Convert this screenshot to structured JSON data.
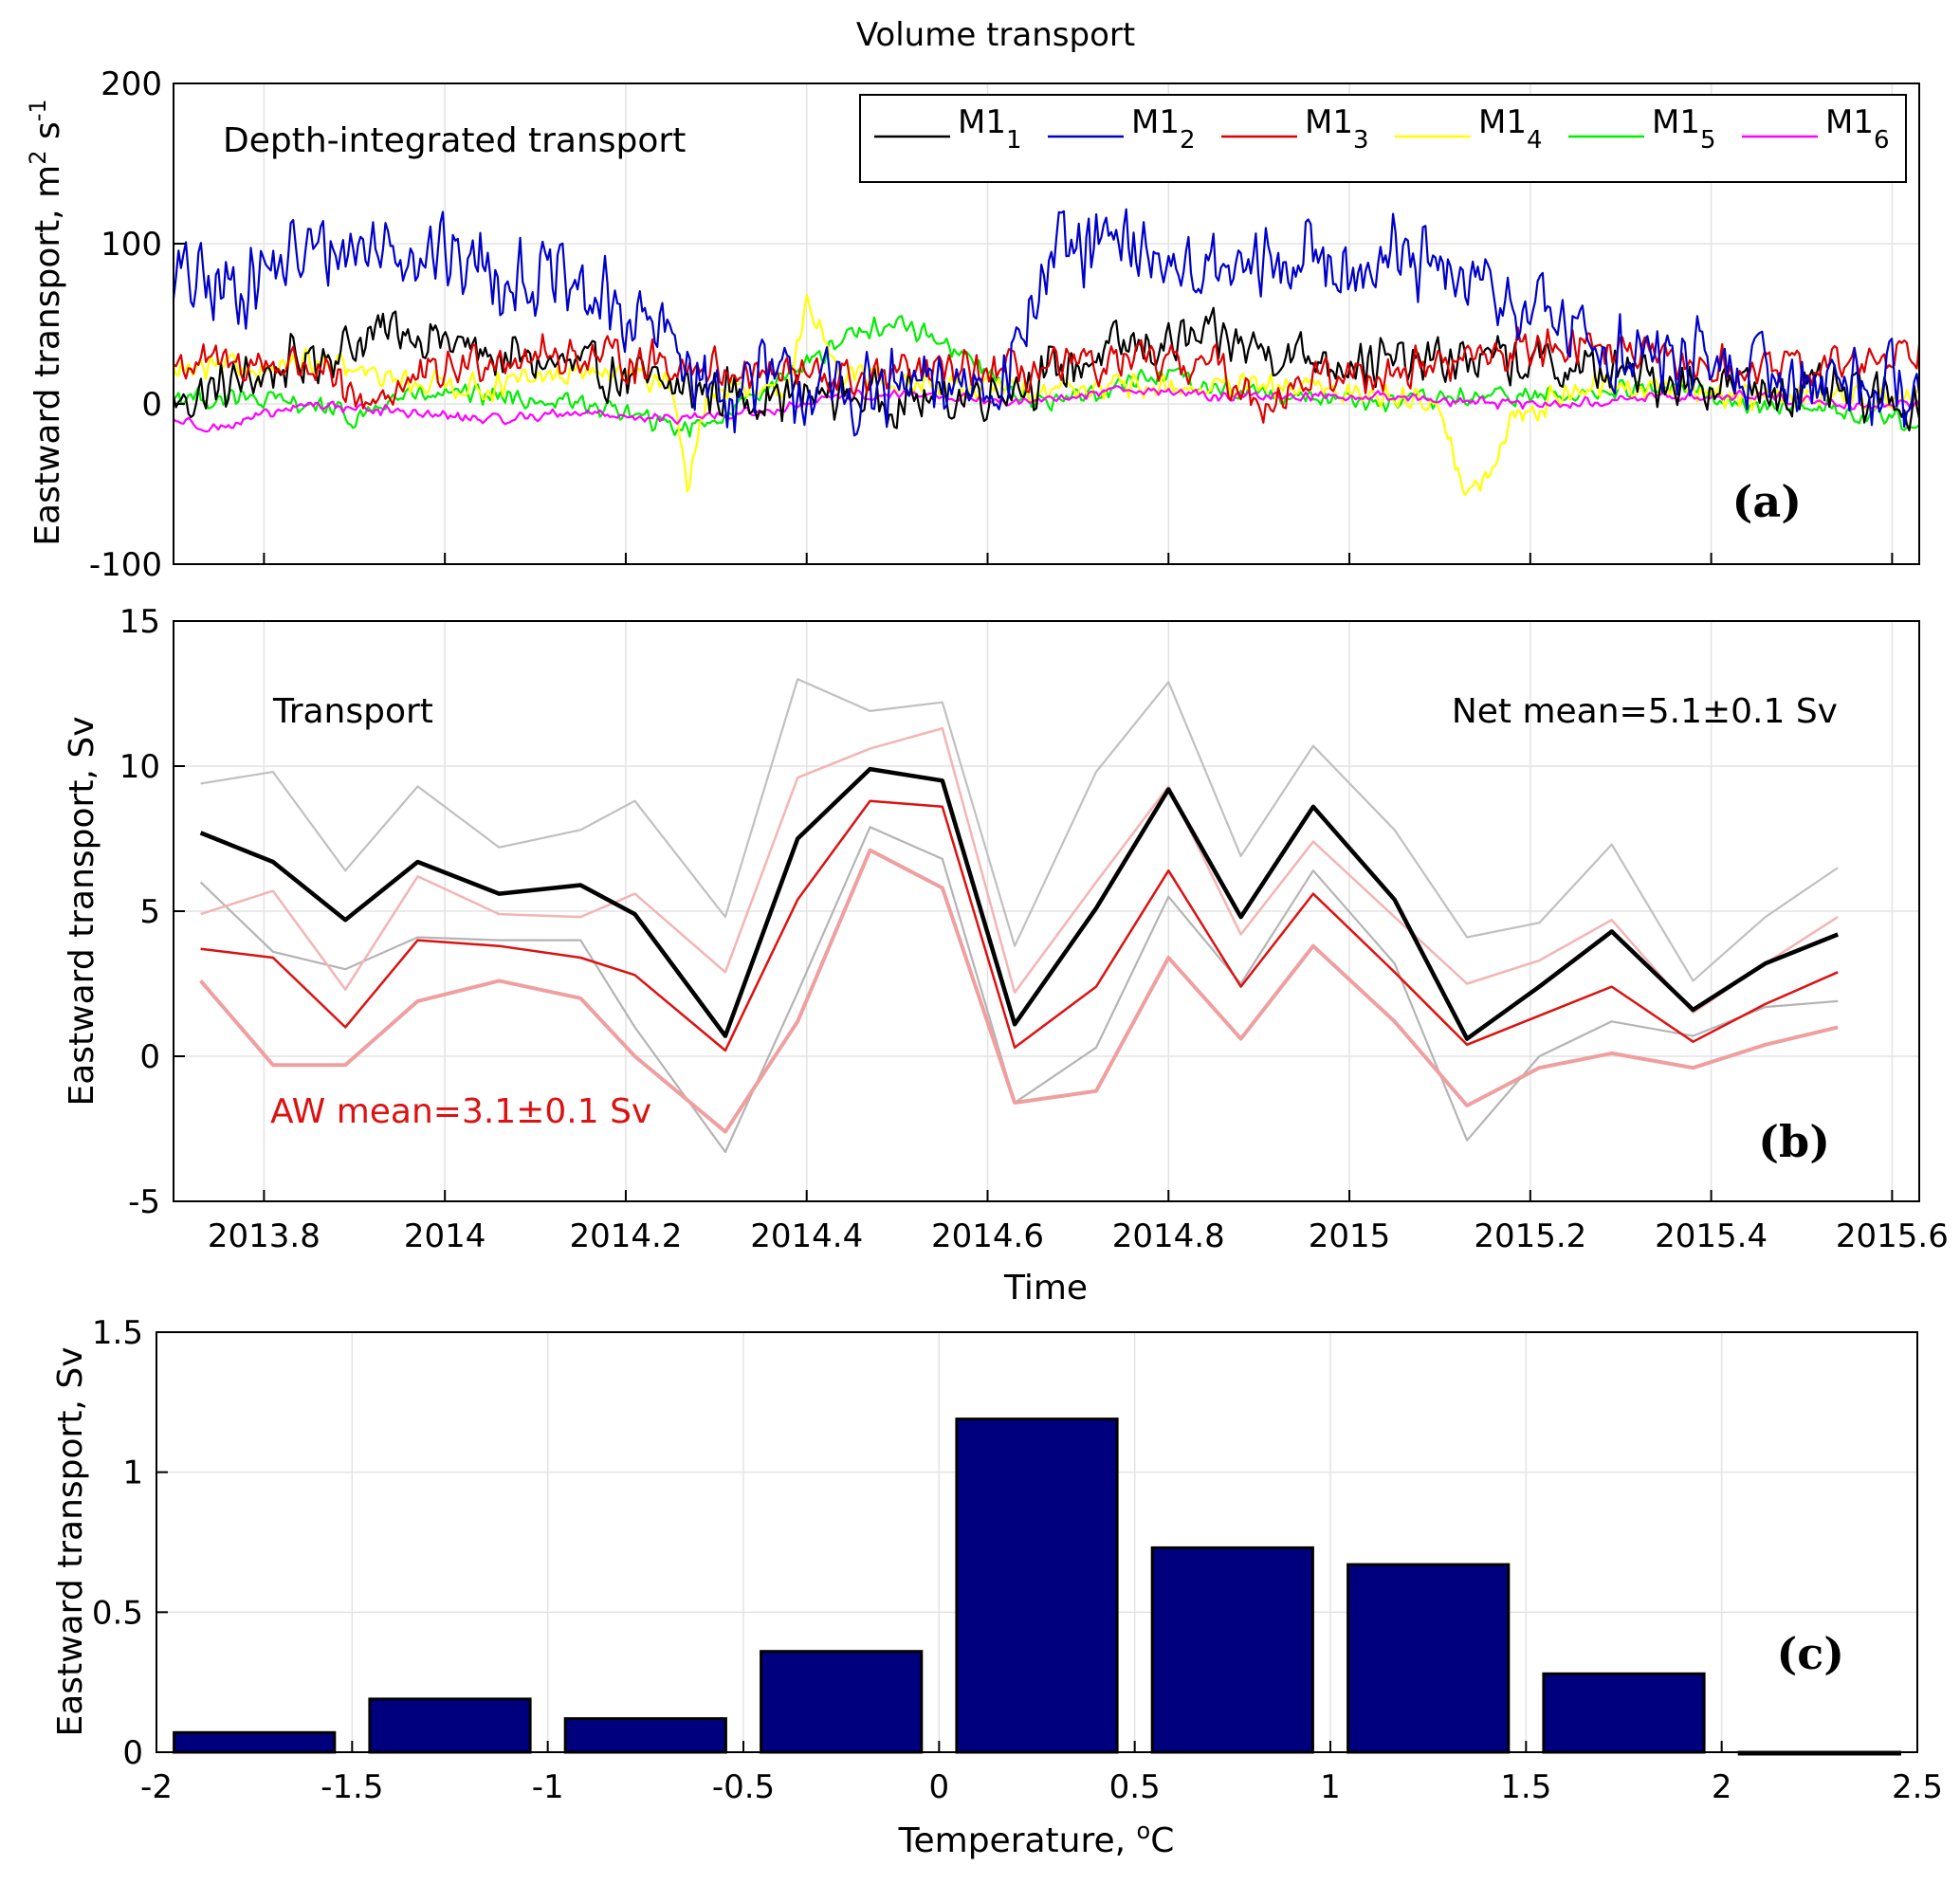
{
  "figure_title": "Volume transport",
  "chart_data": [
    {
      "id": "a",
      "type": "line",
      "panel_label": "(a)",
      "annotation": "Depth-integrated transport",
      "xlabel": "",
      "ylabel": "Eastward transport, m² s⁻¹",
      "ylabel_parts": {
        "base": "Eastward transport, m",
        "exp1": "2",
        "mid": " s",
        "exp2": "-1"
      },
      "xlim": [
        2013.7,
        2015.63
      ],
      "ylim": [
        -100,
        200
      ],
      "yticks": [
        -100,
        0,
        100,
        200
      ],
      "ytick_labels": [
        "-100",
        "0",
        "100",
        "200"
      ],
      "xticks": [
        2013.8,
        2014.0,
        2014.2,
        2014.4,
        2014.6,
        2014.8,
        2015.0,
        2015.2,
        2015.4,
        2015.6
      ],
      "grid": true,
      "legend_position": "top-right",
      "series": [
        {
          "name": "M1",
          "sub": "1",
          "color": "#000000",
          "base": 18,
          "segments": [
            [
              2013.7,
              0
            ],
            [
              2013.85,
              28
            ],
            [
              2013.95,
              48
            ],
            [
              2014.05,
              30
            ],
            [
              2014.15,
              22
            ],
            [
              2014.25,
              10
            ],
            [
              2014.35,
              5
            ],
            [
              2014.45,
              5
            ],
            [
              2014.55,
              2
            ],
            [
              2014.65,
              15
            ],
            [
              2014.75,
              35
            ],
            [
              2014.85,
              40
            ],
            [
              2014.95,
              30
            ],
            [
              2015.05,
              25
            ],
            [
              2015.15,
              28
            ],
            [
              2015.25,
              22
            ],
            [
              2015.35,
              15
            ],
            [
              2015.45,
              10
            ],
            [
              2015.55,
              5
            ],
            [
              2015.63,
              0
            ]
          ],
          "amp": 20
        },
        {
          "name": "M1",
          "sub": "2",
          "color": "#0000cc",
          "base": 0,
          "segments": [
            [
              2013.7,
              80
            ],
            [
              2013.75,
              70
            ],
            [
              2013.85,
              95
            ],
            [
              2013.95,
              100
            ],
            [
              2014.05,
              85
            ],
            [
              2014.15,
              70
            ],
            [
              2014.25,
              40
            ],
            [
              2014.3,
              5
            ],
            [
              2014.35,
              15
            ],
            [
              2014.45,
              5
            ],
            [
              2014.55,
              10
            ],
            [
              2014.62,
              20
            ],
            [
              2014.67,
              90
            ],
            [
              2014.75,
              100
            ],
            [
              2014.85,
              80
            ],
            [
              2014.95,
              90
            ],
            [
              2015.05,
              90
            ],
            [
              2015.15,
              70
            ],
            [
              2015.22,
              55
            ],
            [
              2015.3,
              30
            ],
            [
              2015.4,
              25
            ],
            [
              2015.5,
              15
            ],
            [
              2015.63,
              15
            ]
          ],
          "amp": 32
        },
        {
          "name": "M1",
          "sub": "3",
          "color": "#dd0000",
          "base": 0,
          "segments": [
            [
              2013.7,
              25
            ],
            [
              2013.85,
              25
            ],
            [
              2013.9,
              0
            ],
            [
              2013.95,
              10
            ],
            [
              2014.05,
              30
            ],
            [
              2014.15,
              30
            ],
            [
              2014.25,
              25
            ],
            [
              2014.35,
              20
            ],
            [
              2014.45,
              15
            ],
            [
              2014.55,
              20
            ],
            [
              2014.65,
              20
            ],
            [
              2014.75,
              25
            ],
            [
              2014.85,
              25
            ],
            [
              2014.9,
              0
            ],
            [
              2014.95,
              15
            ],
            [
              2015.05,
              20
            ],
            [
              2015.15,
              30
            ],
            [
              2015.25,
              40
            ],
            [
              2015.35,
              25
            ],
            [
              2015.45,
              20
            ],
            [
              2015.55,
              25
            ],
            [
              2015.63,
              35
            ]
          ],
          "amp": 16
        },
        {
          "name": "M1",
          "sub": "4",
          "color": "#ffff00",
          "base": 0,
          "segments": [
            [
              2013.7,
              20
            ],
            [
              2013.85,
              25
            ],
            [
              2013.95,
              15
            ],
            [
              2014.05,
              10
            ],
            [
              2014.15,
              20
            ],
            [
              2014.25,
              15
            ],
            [
              2014.27,
              -55
            ],
            [
              2014.29,
              10
            ],
            [
              2014.38,
              5
            ],
            [
              2014.4,
              65
            ],
            [
              2014.44,
              20
            ],
            [
              2014.55,
              10
            ],
            [
              2014.65,
              10
            ],
            [
              2014.75,
              10
            ],
            [
              2014.85,
              10
            ],
            [
              2014.95,
              10
            ],
            [
              2015.05,
              5
            ],
            [
              2015.1,
              0
            ],
            [
              2015.13,
              -60
            ],
            [
              2015.16,
              -40
            ],
            [
              2015.18,
              -10
            ],
            [
              2015.25,
              10
            ],
            [
              2015.35,
              10
            ],
            [
              2015.45,
              5
            ],
            [
              2015.55,
              5
            ],
            [
              2015.63,
              5
            ]
          ],
          "amp": 10
        },
        {
          "name": "M1",
          "sub": "5",
          "color": "#00ee00",
          "base": 0,
          "segments": [
            [
              2013.7,
              5
            ],
            [
              2013.85,
              0
            ],
            [
              2013.9,
              -10
            ],
            [
              2013.95,
              5
            ],
            [
              2014.05,
              5
            ],
            [
              2014.15,
              0
            ],
            [
              2014.2,
              -5
            ],
            [
              2014.25,
              -15
            ],
            [
              2014.3,
              -10
            ],
            [
              2014.35,
              10
            ],
            [
              2014.4,
              25
            ],
            [
              2014.45,
              45
            ],
            [
              2014.5,
              50
            ],
            [
              2014.55,
              40
            ],
            [
              2014.6,
              20
            ],
            [
              2014.65,
              0
            ],
            [
              2014.7,
              5
            ],
            [
              2014.8,
              20
            ],
            [
              2014.85,
              10
            ],
            [
              2014.95,
              5
            ],
            [
              2015.05,
              0
            ],
            [
              2015.15,
              5
            ],
            [
              2015.25,
              5
            ],
            [
              2015.35,
              10
            ],
            [
              2015.45,
              0
            ],
            [
              2015.55,
              -5
            ],
            [
              2015.63,
              -10
            ]
          ],
          "amp": 8
        },
        {
          "name": "M1",
          "sub": "6",
          "color": "#ff00ff",
          "base": 0,
          "segments": [
            [
              2013.7,
              -10
            ],
            [
              2013.75,
              -15
            ],
            [
              2013.85,
              0
            ],
            [
              2013.95,
              -5
            ],
            [
              2014.05,
              -10
            ],
            [
              2014.15,
              -5
            ],
            [
              2014.25,
              -10
            ],
            [
              2014.35,
              -5
            ],
            [
              2014.45,
              5
            ],
            [
              2014.55,
              5
            ],
            [
              2014.65,
              0
            ],
            [
              2014.75,
              10
            ],
            [
              2014.85,
              5
            ],
            [
              2014.95,
              5
            ],
            [
              2015.05,
              5
            ],
            [
              2015.15,
              0
            ],
            [
              2015.25,
              0
            ],
            [
              2015.35,
              5
            ],
            [
              2015.45,
              5
            ],
            [
              2015.55,
              0
            ],
            [
              2015.63,
              0
            ]
          ],
          "amp": 4
        }
      ]
    },
    {
      "id": "b",
      "type": "line",
      "panel_label": "(b)",
      "annotation_left": "Transport",
      "annotation_right": "Net mean=5.1±0.1 Sv",
      "annotation_aw": "AW mean=3.1±0.1 Sv",
      "xlabel": "Time",
      "ylabel": "Eastward transport, Sv",
      "xlim": [
        2013.7,
        2015.63
      ],
      "ylim": [
        -5,
        15
      ],
      "yticks": [
        -5,
        0,
        5,
        10,
        15
      ],
      "ytick_labels": [
        "-5",
        "0",
        "5",
        "10",
        "15"
      ],
      "xticks": [
        2013.8,
        2014.0,
        2014.2,
        2014.4,
        2014.6,
        2014.8,
        2015.0,
        2015.2,
        2015.4,
        2015.6
      ],
      "xtick_labels": [
        "2013.8",
        "2014",
        "2014.2",
        "2014.4",
        "2014.6",
        "2014.8",
        "2015",
        "2015.2",
        "2015.4",
        "2015.6"
      ],
      "grid": true,
      "x": [
        2013.73,
        2013.81,
        2013.89,
        2013.97,
        2014.06,
        2014.15,
        2014.21,
        2014.31,
        2014.39,
        2014.47,
        2014.55,
        2014.63,
        2014.72,
        2014.8,
        2014.88,
        2014.96,
        2015.05,
        2015.13,
        2015.21,
        2015.29,
        2015.38,
        2015.46,
        2015.54
      ],
      "series": [
        {
          "name": "Net transport",
          "color": "#000000",
          "width": 4.5,
          "values": [
            7.7,
            6.7,
            4.7,
            6.7,
            5.6,
            5.9,
            4.9,
            0.7,
            7.5,
            9.9,
            9.5,
            1.1,
            5.1,
            9.2,
            4.8,
            8.6,
            5.4,
            0.6,
            2.4,
            4.3,
            1.6,
            3.2,
            4.2
          ]
        },
        {
          "name": "Net upper bound",
          "color": "#c0c0c0",
          "width": 2.2,
          "values": [
            9.4,
            9.8,
            6.4,
            9.3,
            7.2,
            7.8,
            8.8,
            4.8,
            13.0,
            11.9,
            12.2,
            3.8,
            9.8,
            12.9,
            6.9,
            10.7,
            7.8,
            4.1,
            4.6,
            7.3,
            2.6,
            4.8,
            6.5
          ]
        },
        {
          "name": "Net lower bound",
          "color": "#b4b4b4",
          "width": 2.2,
          "values": [
            6.0,
            3.6,
            3.0,
            4.1,
            4.0,
            4.0,
            1.0,
            -3.3,
            2.2,
            7.9,
            6.8,
            -1.6,
            0.3,
            5.5,
            2.5,
            6.4,
            3.2,
            -2.9,
            0.0,
            1.2,
            0.7,
            1.7,
            1.9
          ]
        },
        {
          "name": "AW transport",
          "color": "#dd1111",
          "width": 2.5,
          "values": [
            3.7,
            3.4,
            1.0,
            4.0,
            3.8,
            3.4,
            2.8,
            0.2,
            5.4,
            8.8,
            8.6,
            0.3,
            2.4,
            6.4,
            2.4,
            5.6,
            2.9,
            0.4,
            1.4,
            2.4,
            0.5,
            1.8,
            2.9
          ]
        },
        {
          "name": "AW upper bound",
          "color": "#f3b4b4",
          "width": 2.5,
          "values": [
            4.9,
            5.7,
            2.3,
            6.2,
            4.9,
            4.8,
            5.6,
            2.9,
            9.6,
            10.6,
            11.3,
            2.2,
            6.0,
            9.3,
            4.2,
            7.4,
            4.8,
            2.5,
            3.3,
            4.7,
            1.5,
            3.2,
            4.8
          ]
        },
        {
          "name": "AW lower bound",
          "color": "#ef9f9f",
          "width": 4.0,
          "values": [
            2.6,
            -0.3,
            -0.3,
            1.9,
            2.6,
            2.0,
            0.0,
            -2.6,
            1.2,
            7.1,
            5.8,
            -1.6,
            -1.2,
            3.4,
            0.6,
            3.8,
            1.2,
            -1.7,
            -0.4,
            0.1,
            -0.4,
            0.4,
            1.0
          ]
        }
      ]
    },
    {
      "id": "c",
      "type": "bar",
      "panel_label": "(c)",
      "xlabel": "Temperature, °C",
      "xlabel_parts": {
        "base": "Temperature, ",
        "exp": "o",
        "tail": "C"
      },
      "ylabel": "Eastward transport, Sv",
      "xlim": [
        -2,
        2.5
      ],
      "ylim": [
        0,
        1.5
      ],
      "xticks": [
        -2,
        -1.5,
        -1,
        -0.5,
        0,
        0.5,
        1,
        1.5,
        2,
        2.5
      ],
      "xtick_labels": [
        "-2",
        "-1.5",
        "-1",
        "-0.5",
        "0",
        "0.5",
        "1",
        "1.5",
        "2",
        "2.5"
      ],
      "yticks": [
        0,
        0.5,
        1,
        1.5
      ],
      "ytick_labels": [
        "0",
        "0.5",
        "1",
        "1.5"
      ],
      "grid": true,
      "bar_color": "#00007f",
      "bins": [
        -2.0,
        -1.5,
        -1.0,
        -0.5,
        0.0,
        0.5,
        1.0,
        1.5,
        2.0
      ],
      "bin_width": 0.5,
      "values": [
        0.07,
        0.19,
        0.12,
        0.36,
        1.19,
        0.73,
        0.67,
        0.28,
        0.0
      ]
    }
  ]
}
